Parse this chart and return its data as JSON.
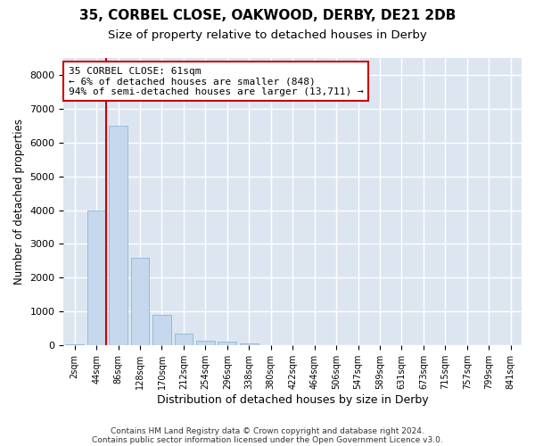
{
  "title1": "35, CORBEL CLOSE, OAKWOOD, DERBY, DE21 2DB",
  "title2": "Size of property relative to detached houses in Derby",
  "xlabel": "Distribution of detached houses by size in Derby",
  "ylabel": "Number of detached properties",
  "bar_labels": [
    "2sqm",
    "44sqm",
    "86sqm",
    "128sqm",
    "170sqm",
    "212sqm",
    "254sqm",
    "296sqm",
    "338sqm",
    "380sqm",
    "422sqm",
    "464sqm",
    "506sqm",
    "547sqm",
    "589sqm",
    "631sqm",
    "673sqm",
    "715sqm",
    "757sqm",
    "799sqm",
    "841sqm"
  ],
  "bar_values": [
    20,
    4000,
    6500,
    2600,
    900,
    350,
    130,
    100,
    60,
    10,
    5,
    3,
    2,
    1,
    0,
    0,
    0,
    0,
    0,
    0,
    0
  ],
  "bar_color": "#c5d8ee",
  "bar_edgecolor": "#7aaed4",
  "vline_x_index": 1.45,
  "vline_color": "#cc0000",
  "annotation_line1": "35 CORBEL CLOSE: 61sqm",
  "annotation_line2": "← 6% of detached houses are smaller (848)",
  "annotation_line3": "94% of semi-detached houses are larger (13,711) →",
  "annotation_box_color": "white",
  "annotation_box_edgecolor": "#cc0000",
  "ylim": [
    0,
    8500
  ],
  "yticks": [
    0,
    1000,
    2000,
    3000,
    4000,
    5000,
    6000,
    7000,
    8000
  ],
  "footer1": "Contains HM Land Registry data © Crown copyright and database right 2024.",
  "footer2": "Contains public sector information licensed under the Open Government Licence v3.0.",
  "plot_bg_color": "#dde6f0",
  "grid_color": "white",
  "title1_fontsize": 11,
  "title2_fontsize": 9.5,
  "xlabel_fontsize": 9,
  "ylabel_fontsize": 8.5,
  "footer_fontsize": 6.5
}
